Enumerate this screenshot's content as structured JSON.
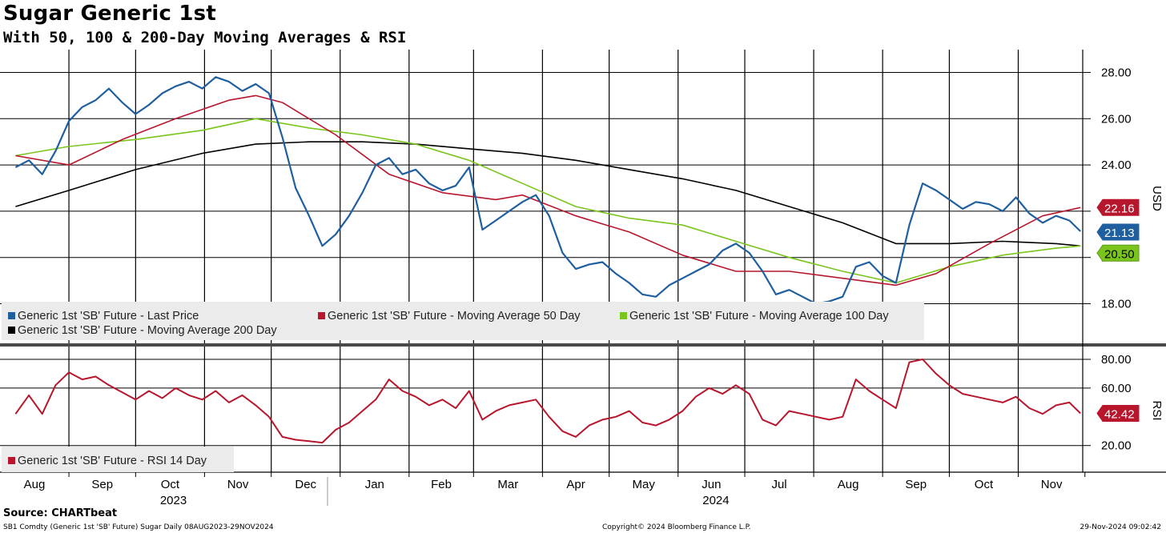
{
  "header": {
    "title": "Sugar Generic 1st",
    "subtitle": "With 50, 100 & 200-Day Moving Averages & RSI"
  },
  "footer": {
    "source": "Source: CHARTbeat",
    "left": "SB1 Comdty (Generic 1st 'SB' Future) Sugar  Daily 08AUG2023-29NOV2024",
    "center": "Copyright© 2024 Bloomberg Finance L.P.",
    "right": "29-Nov-2024 09:02:42"
  },
  "colors": {
    "last_price": "#1f5fa0",
    "ma50": "#b8162c",
    "ma100": "#7ac51c",
    "ma200": "#000000",
    "rsi": "#b8162c",
    "legend_bg": "#ebebeb"
  },
  "chart_data": [
    {
      "type": "line",
      "name": "price",
      "ylabel": "USD",
      "ylim": [
        16.0,
        29.0
      ],
      "yticks": [
        "28.00",
        "26.00",
        "24.00",
        "22.00",
        "20.00",
        "18.00"
      ],
      "ytick_values": [
        28,
        26,
        24,
        22,
        20,
        18
      ],
      "x_axis": {
        "months": [
          "Aug",
          "Sep",
          "Oct",
          "Nov",
          "Dec",
          "Jan",
          "Feb",
          "Mar",
          "Apr",
          "May",
          "Jun",
          "Jul",
          "Aug",
          "Sep",
          "Oct",
          "Nov"
        ],
        "years": [
          "2023",
          "2024"
        ],
        "range": [
          "2023-08-08",
          "2024-11-29"
        ]
      },
      "legend": [
        "Generic 1st 'SB' Future - Last Price",
        "Generic 1st 'SB' Future - Moving Average 50 Day",
        "Generic 1st 'SB' Future - Moving Average 100 Day",
        "Generic 1st 'SB' Future - Moving Average 200 Day"
      ],
      "last_values": {
        "ma50": "22.16",
        "last_price": "21.13",
        "ma100": "20.50"
      },
      "series": [
        {
          "key": "last_price",
          "x": [
            "2023-08-08",
            "2023-08-14",
            "2023-08-20",
            "2023-08-26",
            "2023-09-01",
            "2023-09-07",
            "2023-09-13",
            "2023-09-19",
            "2023-09-25",
            "2023-10-01",
            "2023-10-07",
            "2023-10-13",
            "2023-10-19",
            "2023-10-25",
            "2023-10-31",
            "2023-11-06",
            "2023-11-12",
            "2023-11-18",
            "2023-11-24",
            "2023-11-30",
            "2023-12-06",
            "2023-12-12",
            "2023-12-18",
            "2023-12-24",
            "2023-12-30",
            "2024-01-05",
            "2024-01-11",
            "2024-01-17",
            "2024-01-23",
            "2024-01-29",
            "2024-02-04",
            "2024-02-10",
            "2024-02-16",
            "2024-02-22",
            "2024-02-28",
            "2024-03-05",
            "2024-03-11",
            "2024-03-17",
            "2024-03-23",
            "2024-03-29",
            "2024-04-04",
            "2024-04-10",
            "2024-04-16",
            "2024-04-22",
            "2024-04-28",
            "2024-05-04",
            "2024-05-10",
            "2024-05-16",
            "2024-05-22",
            "2024-05-28",
            "2024-06-03",
            "2024-06-09",
            "2024-06-15",
            "2024-06-21",
            "2024-06-27",
            "2024-07-03",
            "2024-07-09",
            "2024-07-15",
            "2024-07-21",
            "2024-07-27",
            "2024-08-02",
            "2024-08-08",
            "2024-08-14",
            "2024-08-20",
            "2024-08-26",
            "2024-09-01",
            "2024-09-07",
            "2024-09-13",
            "2024-09-19",
            "2024-09-25",
            "2024-10-01",
            "2024-10-07",
            "2024-10-13",
            "2024-10-19",
            "2024-10-25",
            "2024-10-31",
            "2024-11-06",
            "2024-11-12",
            "2024-11-18",
            "2024-11-24",
            "2024-11-29"
          ],
          "y": [
            23.9,
            24.2,
            23.6,
            24.6,
            25.9,
            26.5,
            26.8,
            27.3,
            26.7,
            26.2,
            26.6,
            27.1,
            27.4,
            27.6,
            27.3,
            27.8,
            27.6,
            27.2,
            27.5,
            27.1,
            25.2,
            23.0,
            21.8,
            20.5,
            21.0,
            21.8,
            22.8,
            24.0,
            24.3,
            23.6,
            23.8,
            23.2,
            22.9,
            23.1,
            23.9,
            21.2,
            21.6,
            22.0,
            22.4,
            22.7,
            21.8,
            20.2,
            19.5,
            19.7,
            19.8,
            19.3,
            18.9,
            18.4,
            18.3,
            18.8,
            19.1,
            19.4,
            19.7,
            20.3,
            20.6,
            20.2,
            19.4,
            18.4,
            18.6,
            18.3,
            18.0,
            18.1,
            18.3,
            19.6,
            19.8,
            19.2,
            18.9,
            21.4,
            23.2,
            22.9,
            22.5,
            22.1,
            22.4,
            22.3,
            22.0,
            22.6,
            21.9,
            21.5,
            21.8,
            21.6,
            21.13
          ]
        },
        {
          "key": "ma50",
          "x": [
            "2023-08-08",
            "2023-09-01",
            "2023-09-25",
            "2023-10-19",
            "2023-11-12",
            "2023-11-24",
            "2023-12-06",
            "2023-12-30",
            "2024-01-23",
            "2024-02-16",
            "2024-03-11",
            "2024-03-23",
            "2024-04-16",
            "2024-05-10",
            "2024-06-03",
            "2024-06-27",
            "2024-07-21",
            "2024-08-14",
            "2024-09-07",
            "2024-09-25",
            "2024-10-19",
            "2024-11-12",
            "2024-11-29"
          ],
          "y": [
            24.4,
            24.0,
            25.1,
            26.0,
            26.8,
            27.0,
            26.7,
            25.3,
            23.6,
            22.8,
            22.5,
            22.7,
            21.8,
            21.1,
            20.1,
            19.4,
            19.4,
            19.1,
            18.8,
            19.3,
            20.6,
            21.8,
            22.16
          ]
        },
        {
          "key": "ma100",
          "x": [
            "2023-08-08",
            "2023-09-01",
            "2023-10-01",
            "2023-10-31",
            "2023-11-24",
            "2023-12-18",
            "2024-01-11",
            "2024-02-04",
            "2024-02-28",
            "2024-03-23",
            "2024-04-16",
            "2024-05-10",
            "2024-06-03",
            "2024-06-27",
            "2024-07-21",
            "2024-08-14",
            "2024-09-07",
            "2024-10-01",
            "2024-10-25",
            "2024-11-18",
            "2024-11-29"
          ],
          "y": [
            24.4,
            24.8,
            25.1,
            25.5,
            26.0,
            25.6,
            25.3,
            24.9,
            24.2,
            23.2,
            22.2,
            21.7,
            21.4,
            20.7,
            20.0,
            19.4,
            18.9,
            19.6,
            20.1,
            20.4,
            20.5
          ]
        },
        {
          "key": "ma200",
          "x": [
            "2023-08-08",
            "2023-09-01",
            "2023-10-01",
            "2023-10-31",
            "2023-11-24",
            "2023-12-18",
            "2024-01-11",
            "2024-02-04",
            "2024-02-28",
            "2024-03-23",
            "2024-04-16",
            "2024-05-10",
            "2024-06-03",
            "2024-06-27",
            "2024-07-21",
            "2024-08-14",
            "2024-09-07",
            "2024-10-01",
            "2024-10-25",
            "2024-11-18",
            "2024-11-29"
          ],
          "y": [
            22.2,
            22.9,
            23.8,
            24.5,
            24.9,
            25.0,
            25.0,
            24.9,
            24.7,
            24.5,
            24.2,
            23.8,
            23.4,
            22.9,
            22.2,
            21.5,
            20.6,
            20.6,
            20.7,
            20.6,
            20.5
          ]
        }
      ]
    },
    {
      "type": "line",
      "name": "rsi",
      "ylabel": "RSI",
      "ylim": [
        10.0,
        87.0
      ],
      "yticks": [
        "80.00",
        "60.00",
        "20.00"
      ],
      "ytick_values": [
        80,
        60,
        20
      ],
      "legend": [
        "Generic 1st 'SB' Future - RSI 14 Day"
      ],
      "last_value": "42.42",
      "series": [
        {
          "key": "rsi",
          "x": [
            "2023-08-08",
            "2023-08-14",
            "2023-08-20",
            "2023-08-26",
            "2023-09-01",
            "2023-09-07",
            "2023-09-13",
            "2023-09-19",
            "2023-09-25",
            "2023-10-01",
            "2023-10-07",
            "2023-10-13",
            "2023-10-19",
            "2023-10-25",
            "2023-10-31",
            "2023-11-06",
            "2023-11-12",
            "2023-11-18",
            "2023-11-24",
            "2023-11-30",
            "2023-12-06",
            "2023-12-12",
            "2023-12-18",
            "2023-12-24",
            "2023-12-30",
            "2024-01-05",
            "2024-01-11",
            "2024-01-17",
            "2024-01-23",
            "2024-01-29",
            "2024-02-04",
            "2024-02-10",
            "2024-02-16",
            "2024-02-22",
            "2024-02-28",
            "2024-03-05",
            "2024-03-11",
            "2024-03-17",
            "2024-03-23",
            "2024-03-29",
            "2024-04-04",
            "2024-04-10",
            "2024-04-16",
            "2024-04-22",
            "2024-04-28",
            "2024-05-04",
            "2024-05-10",
            "2024-05-16",
            "2024-05-22",
            "2024-05-28",
            "2024-06-03",
            "2024-06-09",
            "2024-06-15",
            "2024-06-21",
            "2024-06-27",
            "2024-07-03",
            "2024-07-09",
            "2024-07-15",
            "2024-07-21",
            "2024-07-27",
            "2024-08-02",
            "2024-08-08",
            "2024-08-14",
            "2024-08-20",
            "2024-08-26",
            "2024-09-01",
            "2024-09-07",
            "2024-09-13",
            "2024-09-19",
            "2024-09-25",
            "2024-10-01",
            "2024-10-07",
            "2024-10-13",
            "2024-10-19",
            "2024-10-25",
            "2024-10-31",
            "2024-11-06",
            "2024-11-12",
            "2024-11-18",
            "2024-11-24",
            "2024-11-29"
          ],
          "y": [
            42,
            55,
            42,
            62,
            71,
            66,
            68,
            62,
            57,
            52,
            58,
            53,
            60,
            55,
            52,
            58,
            50,
            55,
            48,
            40,
            26,
            24,
            23,
            22,
            31,
            36,
            44,
            52,
            66,
            58,
            54,
            48,
            52,
            46,
            58,
            38,
            44,
            48,
            50,
            52,
            40,
            30,
            26,
            34,
            38,
            40,
            44,
            36,
            34,
            38,
            44,
            54,
            60,
            56,
            62,
            56,
            38,
            34,
            44,
            42,
            40,
            38,
            40,
            66,
            58,
            52,
            46,
            78,
            80,
            70,
            62,
            56,
            54,
            52,
            50,
            54,
            46,
            42,
            48,
            50,
            42.42
          ]
        }
      ]
    }
  ]
}
